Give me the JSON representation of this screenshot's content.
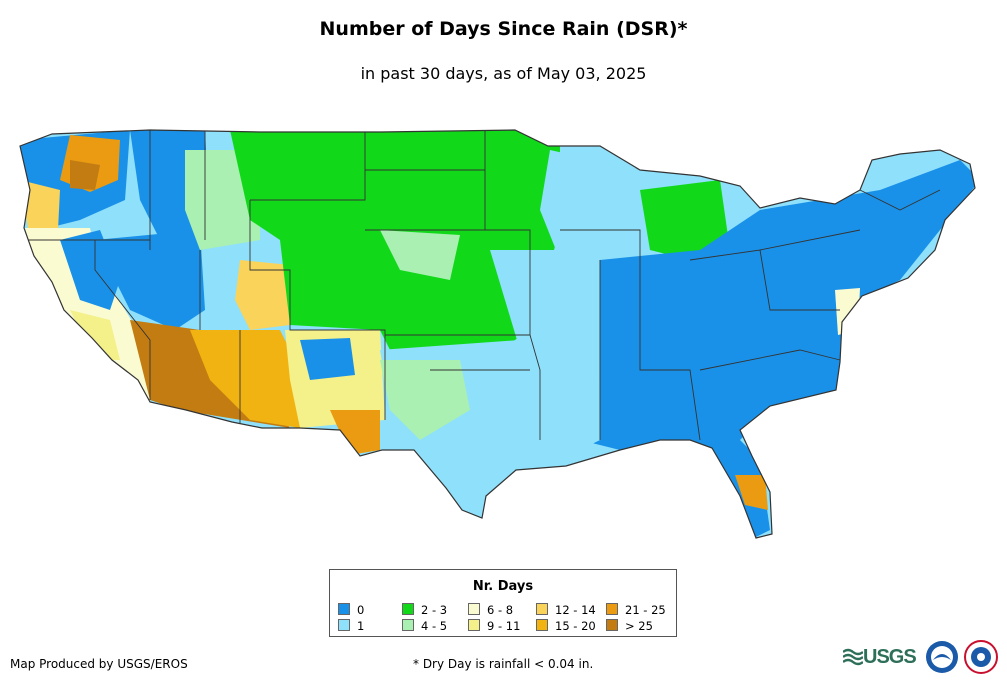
{
  "title": "Number of Days Since Rain (DSR)*",
  "subtitle": "in past 30 days, as of May 03, 2025",
  "legend": {
    "title": "Nr. Days",
    "items": [
      {
        "label": "0",
        "color": "#1a91e8"
      },
      {
        "label": "1",
        "color": "#8fe0fb"
      },
      {
        "label": "2 - 3",
        "color": "#12d81a"
      },
      {
        "label": "4 - 5",
        "color": "#a9f0b2"
      },
      {
        "label": "6 - 8",
        "color": "#fbfbd2"
      },
      {
        "label": "9 - 11",
        "color": "#f4f08a"
      },
      {
        "label": "12 - 14",
        "color": "#fad35a"
      },
      {
        "label": "15 - 20",
        "color": "#f1b312"
      },
      {
        "label": "21 - 25",
        "color": "#ea9b12"
      },
      {
        "label": "> 25",
        "color": "#c27c12"
      }
    ]
  },
  "footer": {
    "credit": "Map Produced by USGS/EROS",
    "note": "* Dry Day is rainfall < 0.04 in."
  },
  "logos": {
    "usgs_text": "USGS",
    "usgs_icon": "usgs-logo",
    "noaa_icon": "noaa-logo",
    "nws_icon": "nws-logo"
  }
}
